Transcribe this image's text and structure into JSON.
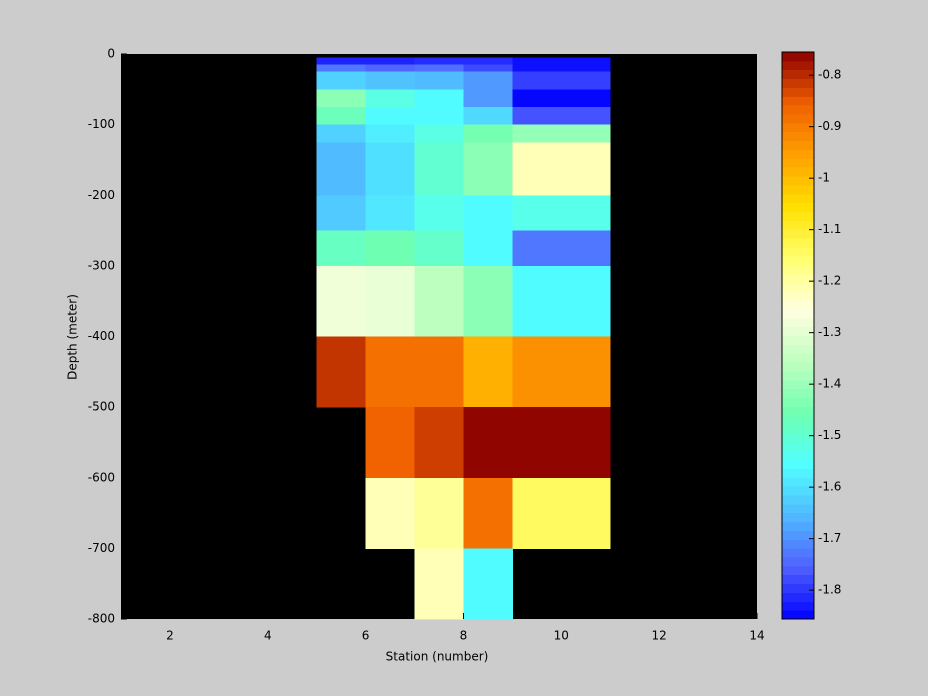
{
  "chart_data": {
    "type": "heatmap",
    "xlabel": "Station (number)",
    "ylabel": "Depth (meter)",
    "x_edges": [
      5,
      6,
      7,
      8,
      9,
      10,
      11
    ],
    "y_edges": [
      -5,
      -15,
      -25,
      -50,
      -75,
      -100,
      -125,
      -150,
      -200,
      -250,
      -300,
      -400,
      -500,
      -600,
      -700,
      -800
    ],
    "values": [
      [
        -1.82,
        -1.82,
        -1.81,
        -1.81,
        -1.84,
        -1.84
      ],
      [
        -1.73,
        -1.75,
        -1.74,
        -1.78,
        -1.84,
        -1.84
      ],
      [
        -1.62,
        -1.64,
        -1.65,
        -1.69,
        -1.79,
        -1.79
      ],
      [
        -1.42,
        -1.52,
        -1.56,
        -1.69,
        -1.85,
        -1.85
      ],
      [
        -1.47,
        -1.56,
        -1.56,
        -1.61,
        -1.77,
        -1.77
      ],
      [
        -1.62,
        -1.58,
        -1.52,
        -1.45,
        -1.41,
        -1.41
      ],
      [
        -1.65,
        -1.6,
        -1.5,
        -1.42,
        -1.22,
        -1.22
      ],
      [
        -1.65,
        -1.6,
        -1.5,
        -1.42,
        -1.22,
        -1.22
      ],
      [
        -1.63,
        -1.59,
        -1.53,
        -1.56,
        -1.53,
        -1.53
      ],
      [
        -1.48,
        -1.46,
        -1.49,
        -1.56,
        -1.73,
        -1.73
      ],
      [
        -1.28,
        -1.29,
        -1.36,
        -1.42,
        -1.56,
        -1.56
      ],
      [
        -0.81,
        -0.88,
        -0.88,
        -0.98,
        -0.93,
        -0.93
      ],
      [
        null,
        -0.86,
        -0.82,
        -0.76,
        -0.76,
        -0.76
      ],
      [
        null,
        -1.22,
        -1.19,
        -0.88,
        -1.14,
        -1.14
      ],
      [
        null,
        null,
        -1.22,
        -1.56,
        null,
        null
      ]
    ],
    "xlim": [
      1,
      14
    ],
    "ylim": [
      -800,
      0
    ],
    "xticks": [
      2,
      4,
      6,
      8,
      10,
      12,
      14
    ],
    "yticks": [
      -800,
      -700,
      -600,
      -500,
      -400,
      -300,
      -200,
      -100,
      0
    ],
    "clim": [
      -1.856,
      -0.755
    ],
    "cticks": [
      -1.8,
      -1.7,
      -1.6,
      -1.5,
      -1.4,
      -1.3,
      -1.2,
      -1.1,
      -1,
      -0.9,
      -0.8
    ],
    "colormap": [
      "#0000ff",
      "#5060ff",
      "#50b8ff",
      "#50ffff",
      "#70ffb0",
      "#c0ffc0",
      "#ffffe0",
      "#ffff70",
      "#ffe000",
      "#ffa000",
      "#f06000",
      "#8c0000"
    ],
    "background": "#000000"
  }
}
